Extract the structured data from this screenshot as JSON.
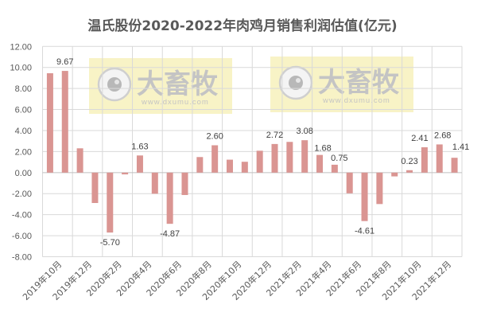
{
  "chart_data": {
    "type": "bar",
    "title": "温氏股份2020-2022年肉鸡月销售利润估值(亿元)",
    "xlabel": "",
    "ylabel": "",
    "ylim": [
      -8,
      12
    ],
    "yticks": [
      "12.00",
      "10.00",
      "8.00",
      "6.00",
      "4.00",
      "2.00",
      "0.00",
      "-2.00",
      "-4.00",
      "-6.00",
      "-8.00"
    ],
    "grid": true,
    "legend": null,
    "categories": [
      "2019年10月",
      "2019年11月",
      "2019年12月",
      "2020年1月",
      "2020年2月",
      "2020年3月",
      "2020年4月",
      "2020年5月",
      "2020年6月",
      "2020年7月",
      "2020年8月",
      "2020年9月",
      "2020年10月",
      "2020年11月",
      "2020年12月",
      "2021年1月",
      "2021年2月",
      "2021年3月",
      "2021年4月",
      "2021年5月",
      "2021年6月",
      "2021年7月",
      "2021年8月",
      "2021年9月",
      "2021年10月",
      "2021年11月",
      "2021年12月",
      "2022年1月"
    ],
    "xtick_labels": [
      "2019年10月",
      "2019年12月",
      "2020年2月",
      "2020年4月",
      "2020年6月",
      "2020年8月",
      "2020年10月",
      "2020年12月",
      "2021年2月",
      "2021年4月",
      "2021年6月",
      "2021年8月",
      "2021年10月",
      "2021年12月"
    ],
    "values": [
      9.45,
      9.67,
      2.31,
      -2.89,
      -5.7,
      -0.17,
      1.63,
      -2.01,
      -4.87,
      -2.13,
      1.48,
      2.6,
      1.23,
      1.03,
      2.08,
      2.72,
      2.92,
      3.08,
      1.68,
      0.75,
      -1.97,
      -4.61,
      -2.99,
      -0.36,
      0.23,
      2.41,
      2.68,
      1.41
    ],
    "data_labels": [
      {
        "index": 1,
        "text": "9.67"
      },
      {
        "index": 4,
        "text": "-5.70"
      },
      {
        "index": 6,
        "text": "1.63"
      },
      {
        "index": 8,
        "text": "-4.87"
      },
      {
        "index": 11,
        "text": "2.60"
      },
      {
        "index": 15,
        "text": "2.72"
      },
      {
        "index": 17,
        "text": "3.08"
      },
      {
        "index": 18,
        "text": "1.68"
      },
      {
        "index": 19,
        "text": "0.75"
      },
      {
        "index": 21,
        "text": "-4.61"
      },
      {
        "index": 24,
        "text": "0.23"
      },
      {
        "index": 25,
        "text": "2.41"
      },
      {
        "index": 26,
        "text": "2.68"
      },
      {
        "index": 27,
        "text": "1.41"
      }
    ],
    "bar_color": "#DA9592"
  },
  "watermark": {
    "brand": "大畜牧",
    "url": "www.dxumu.com"
  },
  "colors": {
    "grid": "#D9D9D9",
    "axis_text": "#595959",
    "watermark_bg": "#F7F2C0"
  }
}
